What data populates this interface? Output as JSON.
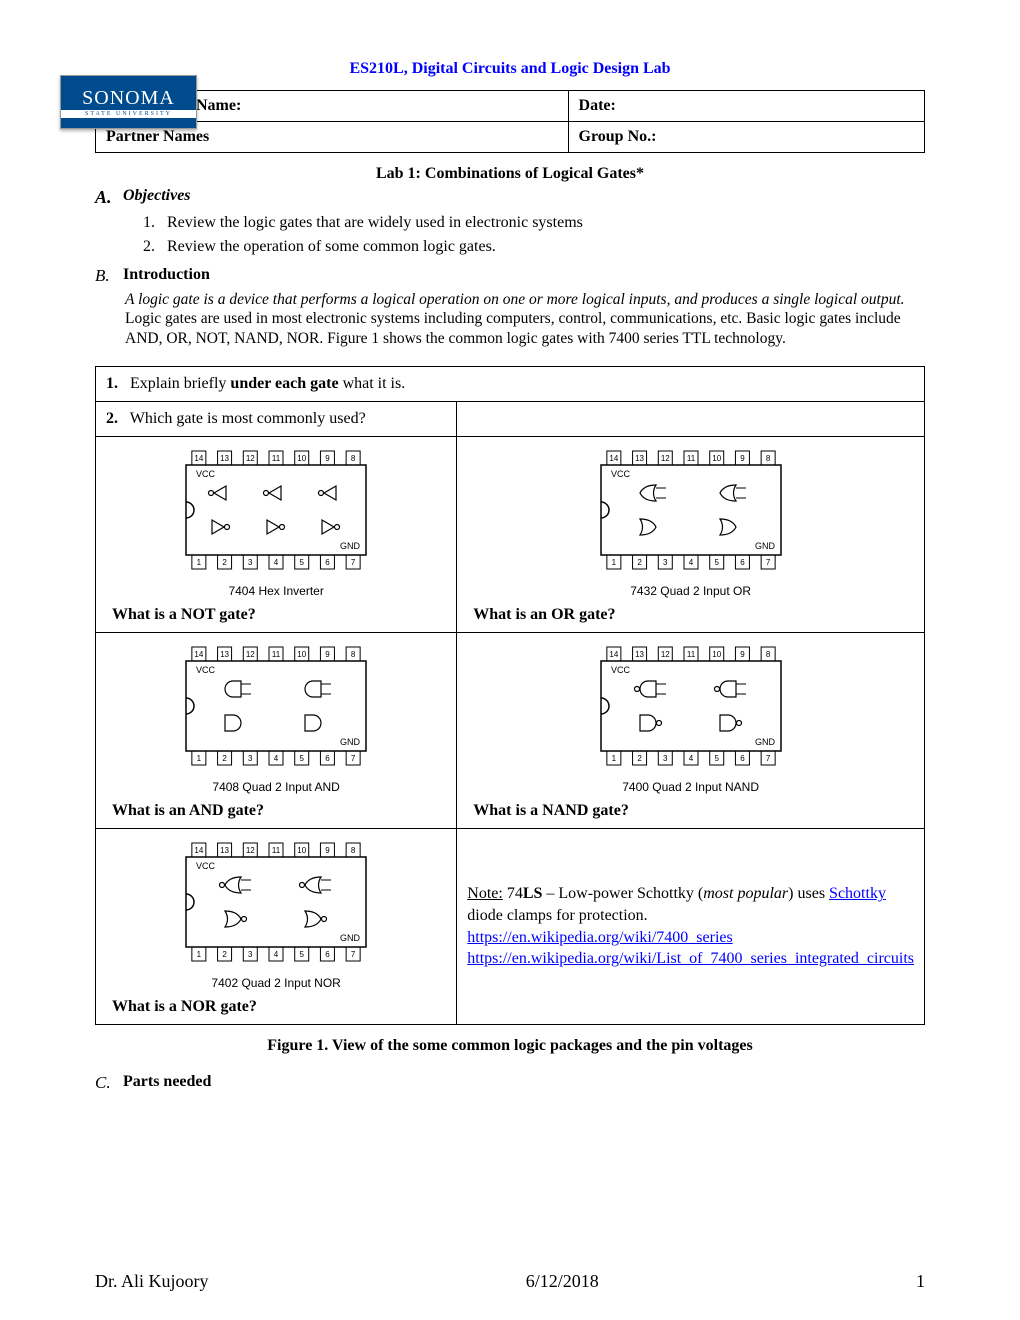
{
  "logo": {
    "main": "SONOMA",
    "sub": "STATE UNIVERSITY"
  },
  "course_title": "ES210L, Digital Circuits and Logic Design Lab",
  "header": {
    "name_label": "Name:",
    "date_label": "Date:",
    "partner_label": "Partner Names",
    "group_label": "Group No.:"
  },
  "lab_title": "Lab 1: Combinations of Logical Gates*",
  "sections": {
    "a_letter": "A.",
    "a_label": "Objectives",
    "objectives": [
      {
        "n": "1.",
        "t": "Review the logic gates that are widely used in electronic systems"
      },
      {
        "n": "2.",
        "t": "Review the operation of some common logic gates."
      }
    ],
    "b_letter": "B.",
    "b_label": "Introduction",
    "intro_lead": "A logic gate is a device that performs a logical operation on one or more logical inputs, and produces a single logical output.",
    "intro_rest": " Logic gates are used in most electronic systems including computers, control, communications, etc. Basic logic gates include AND, OR, NOT, NAND, NOR.  Figure 1 shows the common logic gates with 7400 series TTL technology.",
    "c_letter": "C.",
    "c_label": "Parts needed"
  },
  "q1": {
    "n": "1.",
    "t_a": "Explain briefly ",
    "t_b": "under each gate",
    "t_c": " what it is."
  },
  "q2": {
    "n": "2.",
    "t": "Which gate is most commonly used?"
  },
  "chips": {
    "not": {
      "caption": "7404 Hex Inverter",
      "q": "What is a NOT gate?",
      "type": "not"
    },
    "or": {
      "caption": "7432 Quad 2 Input OR",
      "q": "What is an OR gate?",
      "type": "or"
    },
    "and": {
      "caption": "7408 Quad 2 Input AND",
      "q": "What is an AND gate?",
      "type": "and"
    },
    "nand": {
      "caption": "7400 Quad 2 Input NAND",
      "q": "What is a NAND gate?",
      "type": "nand"
    },
    "nor": {
      "caption": "7402 Quad 2 Input NOR",
      "q": "What is a NOR gate?",
      "type": "nor"
    }
  },
  "note": {
    "prefix": "Note:",
    "body1": " 74",
    "bold": "LS",
    "body2": " – Low-power Schottky (",
    "ital": "most popular",
    "body3": ") uses ",
    "link_schottky_text": "Schottky",
    "link_schottky_url": "#",
    "body4": " diode clamps for protection.",
    "link1_text": "https://en.wikipedia.org/wiki/7400_series",
    "link2_text": "https://en.wikipedia.org/wiki/List_of_7400_series_integrated_circuits"
  },
  "figure_caption": "Figure 1.  View of the some common logic packages and the pin voltages",
  "footer": {
    "author": "Dr. Ali Kujoory",
    "date": "6/12/2018",
    "page": "1"
  },
  "colors": {
    "link": "#0000ff",
    "title": "#0000ff",
    "logo_bg": "#004b8d"
  }
}
